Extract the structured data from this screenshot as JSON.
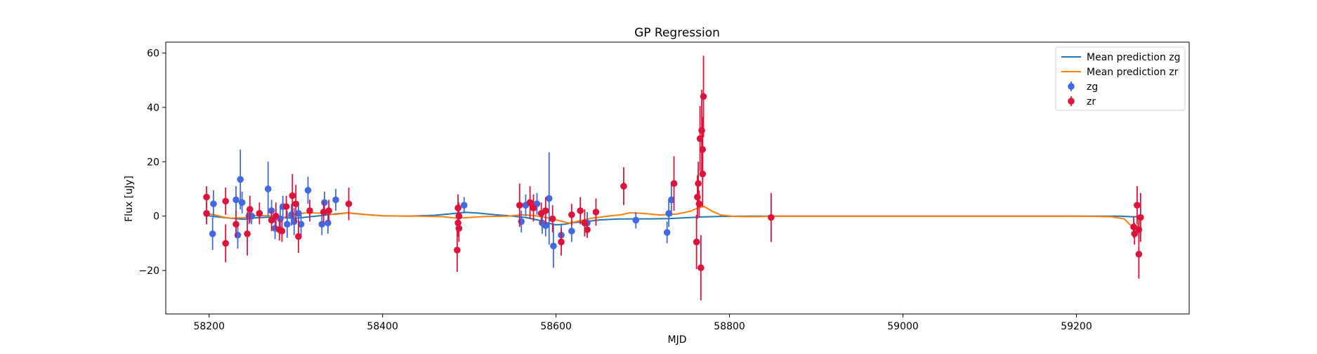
{
  "chart_data": {
    "type": "scatter",
    "title": "GP Regression",
    "xlabel": "MJD",
    "ylabel": "Flux [uJy]",
    "xlim": [
      58150,
      59330
    ],
    "ylim": [
      -36,
      64
    ],
    "xticks": [
      58200,
      58400,
      58600,
      58800,
      59000,
      59200
    ],
    "yticks": [
      -20,
      0,
      20,
      40,
      60
    ],
    "grid": false,
    "legend_position": "top-right",
    "colors": {
      "zg_points": "#4169e1",
      "zr_points": "#dc143c",
      "zg_line": "#1f77b4",
      "zr_line": "#ff7f0e"
    },
    "legend": [
      {
        "label": "Mean prediction zg",
        "kind": "line",
        "color": "#1f77b4"
      },
      {
        "label": "Mean prediction zr",
        "kind": "line",
        "color": "#ff7f0e"
      },
      {
        "label": "zg",
        "kind": "errorbar",
        "color": "#4169e1"
      },
      {
        "label": "zr",
        "kind": "errorbar",
        "color": "#dc143c"
      }
    ],
    "series": [
      {
        "name": "zg",
        "kind": "errorbar",
        "color": "#4169e1",
        "points": [
          [
            58204,
            -6.5,
            6
          ],
          [
            58205,
            4.5,
            5
          ],
          [
            58231,
            6,
            5
          ],
          [
            58233,
            -7,
            5
          ],
          [
            58236,
            13.5,
            11
          ],
          [
            58238,
            5,
            4
          ],
          [
            58246,
            0,
            3
          ],
          [
            58249,
            0,
            3
          ],
          [
            58268,
            10,
            10
          ],
          [
            58272,
            2,
            4
          ],
          [
            58276,
            -4.5,
            4
          ],
          [
            58282,
            -1,
            5
          ],
          [
            58285,
            3.5,
            4
          ],
          [
            58290,
            -3,
            5
          ],
          [
            58295,
            0.5,
            4
          ],
          [
            58298,
            -2,
            5
          ],
          [
            58303,
            1,
            4
          ],
          [
            58306,
            -3,
            4
          ],
          [
            58314,
            9.5,
            5
          ],
          [
            58330,
            -3,
            4
          ],
          [
            58333,
            5,
            4
          ],
          [
            58337,
            -2.5,
            4
          ],
          [
            58346,
            6,
            4
          ],
          [
            58494,
            4,
            3
          ],
          [
            58560,
            -2,
            4
          ],
          [
            58565,
            4,
            4
          ],
          [
            58578,
            4.5,
            4
          ],
          [
            58584,
            -2.5,
            4
          ],
          [
            58588,
            -3.5,
            4
          ],
          [
            58592,
            6.5,
            17
          ],
          [
            58597,
            -11,
            8
          ],
          [
            58606,
            -7,
            4
          ],
          [
            58618,
            -5.5,
            4
          ],
          [
            58636,
            -2.5,
            4
          ],
          [
            58692,
            -1.5,
            3
          ],
          [
            58728,
            -6,
            4
          ],
          [
            58730,
            1,
            5
          ],
          [
            58733,
            6,
            6
          ]
        ]
      },
      {
        "name": "zr",
        "kind": "errorbar",
        "color": "#dc143c",
        "points": [
          [
            58197,
            7,
            4
          ],
          [
            58197,
            1,
            4
          ],
          [
            58219,
            -10,
            7
          ],
          [
            58219,
            5.5,
            5
          ],
          [
            58231,
            -3,
            5
          ],
          [
            58244,
            -6.5,
            8
          ],
          [
            58247,
            2.5,
            5
          ],
          [
            58258,
            1,
            4
          ],
          [
            58272,
            -1.5,
            4
          ],
          [
            58277,
            0,
            5
          ],
          [
            58281,
            -5,
            4
          ],
          [
            58284,
            -5.5,
            4
          ],
          [
            58289,
            3.5,
            4
          ],
          [
            58296,
            7.5,
            8
          ],
          [
            58300,
            4.5,
            7
          ],
          [
            58303,
            -7.5,
            6
          ],
          [
            58316,
            2,
            4
          ],
          [
            58332,
            1.5,
            4
          ],
          [
            58338,
            2,
            4
          ],
          [
            58361,
            4.5,
            6
          ],
          [
            58486,
            -12.5,
            8
          ],
          [
            58487,
            3,
            5
          ],
          [
            58487,
            -2.5,
            5
          ],
          [
            58488,
            0,
            5
          ],
          [
            58488,
            -4.5,
            5
          ],
          [
            58558,
            4,
            8
          ],
          [
            58570,
            5,
            6
          ],
          [
            58574,
            3,
            5
          ],
          [
            58583,
            1,
            4
          ],
          [
            58588,
            2,
            5
          ],
          [
            58596,
            -1,
            5
          ],
          [
            58606,
            -9.5,
            5
          ],
          [
            58618,
            0.5,
            4
          ],
          [
            58628,
            2,
            5
          ],
          [
            58633,
            -2.5,
            5
          ],
          [
            58636,
            -5,
            3
          ],
          [
            58646,
            1.5,
            5
          ],
          [
            58678,
            11,
            7
          ],
          [
            58736,
            12,
            10
          ],
          [
            58762,
            -9.5,
            10
          ],
          [
            58763,
            7,
            8
          ],
          [
            58764,
            12,
            8
          ],
          [
            58765,
            4.5,
            5
          ],
          [
            58766,
            28.5,
            12
          ],
          [
            58767,
            -19,
            12
          ],
          [
            58768,
            31.5,
            15
          ],
          [
            58769,
            24.5,
            12
          ],
          [
            58769,
            15.5,
            12
          ],
          [
            58770,
            44,
            15
          ],
          [
            58848,
            -0.5,
            9
          ],
          [
            59266,
            -4,
            4
          ],
          [
            59267,
            -6.5,
            4
          ],
          [
            59270,
            4,
            7
          ],
          [
            59272,
            -14,
            9
          ],
          [
            59272,
            -5,
            4
          ],
          [
            59274,
            -0.5,
            9
          ]
        ]
      },
      {
        "name": "Mean prediction zg",
        "kind": "line",
        "color": "#1f77b4",
        "x": [
          58197,
          58210,
          58225,
          58240,
          58255,
          58270,
          58285,
          58300,
          58315,
          58330,
          58345,
          58360,
          58380,
          58400,
          58430,
          58460,
          58480,
          58495,
          58510,
          58530,
          58550,
          58565,
          58580,
          58590,
          58600,
          58610,
          58620,
          58635,
          58650,
          58670,
          58690,
          58710,
          58730,
          58750,
          58770,
          58790,
          58820,
          58860,
          58900,
          59000,
          59100,
          59200,
          59250,
          59266,
          59274
        ],
        "y": [
          0.2,
          -0.3,
          -0.8,
          -1.2,
          -0.6,
          -0.4,
          -0.6,
          -0.8,
          -0.3,
          0.2,
          0.8,
          1.2,
          0.6,
          0.1,
          0.0,
          0.3,
          0.9,
          1.4,
          1.1,
          0.5,
          0.0,
          -0.5,
          -1.5,
          -2.5,
          -3.2,
          -3.0,
          -2.4,
          -2.0,
          -1.4,
          -1.1,
          -1.0,
          -1.0,
          -0.9,
          -0.6,
          -0.3,
          -0.1,
          0.0,
          0.0,
          0.0,
          0.0,
          0.0,
          0.0,
          0.0,
          -0.3,
          0.0
        ]
      },
      {
        "name": "Mean prediction zr",
        "kind": "line",
        "color": "#ff7f0e",
        "x": [
          58197,
          58205,
          58215,
          58225,
          58240,
          58255,
          58270,
          58285,
          58300,
          58315,
          58330,
          58345,
          58360,
          58375,
          58400,
          58440,
          58470,
          58486,
          58500,
          58520,
          58545,
          58560,
          58575,
          58590,
          58605,
          58615,
          58625,
          58640,
          58660,
          58675,
          58685,
          58700,
          58720,
          58740,
          58755,
          58765,
          58771,
          58780,
          58790,
          58805,
          58830,
          58848,
          58870,
          58900,
          59000,
          59100,
          59200,
          59240,
          59255,
          59262,
          59268,
          59274
        ],
        "y": [
          0.8,
          0.6,
          -0.3,
          -0.8,
          -0.6,
          0.2,
          0.1,
          -0.6,
          0.8,
          1.3,
          1.0,
          0.6,
          1.2,
          0.7,
          0.1,
          0.0,
          -0.2,
          -0.8,
          -0.5,
          -0.1,
          0.0,
          0.5,
          0.2,
          -0.6,
          -1.8,
          -2.6,
          -1.9,
          -0.8,
          0.0,
          0.5,
          1.2,
          1.0,
          0.4,
          0.8,
          1.8,
          3.2,
          3.5,
          1.8,
          0.4,
          -0.1,
          -0.2,
          0.0,
          0.0,
          0.0,
          0.0,
          0.0,
          0.0,
          -0.2,
          -1.0,
          -3.2,
          -4.5,
          -2.0
        ]
      }
    ]
  }
}
